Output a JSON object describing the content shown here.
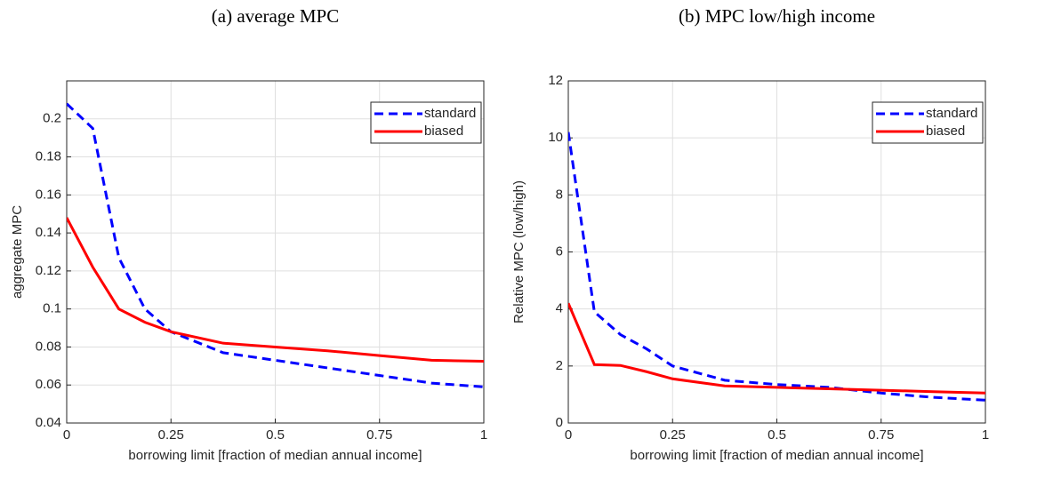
{
  "chart_data": [
    {
      "type": "line",
      "title": "(a) average MPC",
      "x_label": "borrowing limit [fraction of median annual income]",
      "y_label": "aggregate MPC",
      "x": [
        0,
        0.0625,
        0.125,
        0.1875,
        0.25,
        0.375,
        0.5,
        0.625,
        0.75,
        0.875,
        1
      ],
      "series": [
        {
          "name": "standard",
          "color": "#0000ff",
          "linestyle": "dashed",
          "values": [
            0.208,
            0.195,
            0.127,
            0.1,
            0.088,
            0.077,
            0.073,
            0.069,
            0.065,
            0.061,
            0.059
          ]
        },
        {
          "name": "biased",
          "color": "#ff0000",
          "linestyle": "solid",
          "values": [
            0.148,
            0.122,
            0.1,
            0.093,
            0.088,
            0.082,
            0.08,
            0.078,
            0.0755,
            0.073,
            0.0725
          ]
        }
      ],
      "xlim": [
        0,
        1
      ],
      "xticks": [
        0,
        0.25,
        0.5,
        0.75,
        1
      ],
      "ylim": [
        0.04,
        0.22
      ],
      "yticks": [
        0.04,
        0.06,
        0.08,
        0.1,
        0.12,
        0.14,
        0.16,
        0.18,
        0.2
      ],
      "grid": true,
      "legend": "northeast"
    },
    {
      "type": "line",
      "title": "(b) MPC low/high income",
      "x_label": "borrowing limit [fraction of median annual income]",
      "y_label": "Relative MPC (low/high)",
      "x": [
        0,
        0.0625,
        0.125,
        0.1875,
        0.25,
        0.375,
        0.5,
        0.625,
        0.75,
        0.875,
        1
      ],
      "series": [
        {
          "name": "standard",
          "color": "#0000ff",
          "linestyle": "dashed",
          "values": [
            10.2,
            3.9,
            3.1,
            2.6,
            2.0,
            1.5,
            1.35,
            1.25,
            1.05,
            0.9,
            0.8
          ]
        },
        {
          "name": "biased",
          "color": "#ff0000",
          "linestyle": "solid",
          "values": [
            4.2,
            2.05,
            2.02,
            1.8,
            1.55,
            1.3,
            1.25,
            1.2,
            1.15,
            1.1,
            1.05
          ]
        }
      ],
      "xlim": [
        0,
        1
      ],
      "xticks": [
        0,
        0.25,
        0.5,
        0.75,
        1
      ],
      "ylim": [
        0,
        12
      ],
      "yticks": [
        0,
        2,
        4,
        6,
        8,
        10,
        12
      ],
      "grid": true,
      "legend": "northeast"
    }
  ]
}
